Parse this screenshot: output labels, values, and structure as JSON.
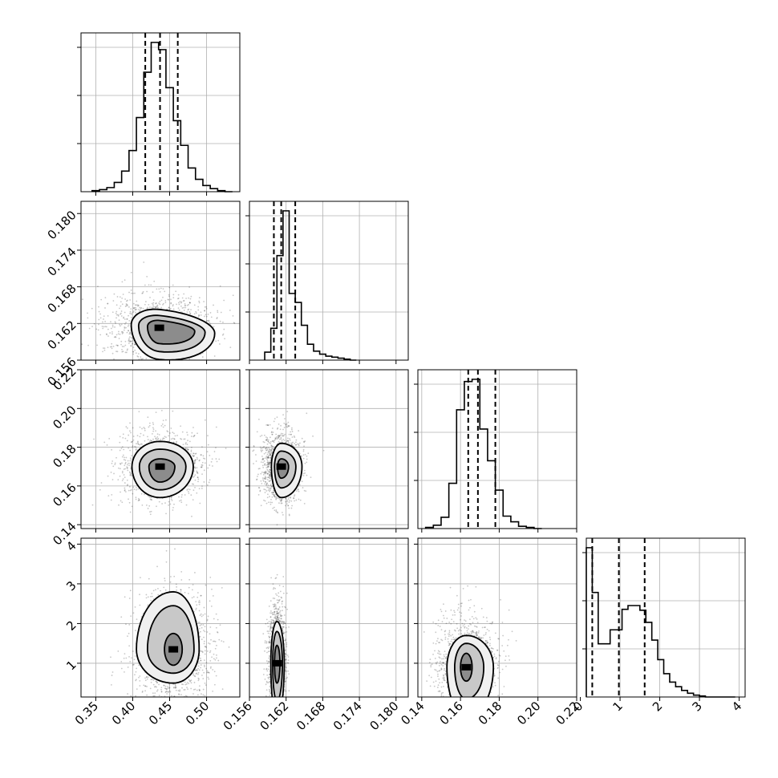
{
  "chart_data": {
    "type": "corner",
    "grid": true,
    "colors": {
      "line": "#000000",
      "grid": "#b0b0b0",
      "fill_dark": "#000000",
      "scatter": "#000000"
    },
    "parameters": [
      {
        "index": 0,
        "range": [
          0.33,
          0.545
        ],
        "median": 0.437,
        "q16": 0.417,
        "q84": 0.461,
        "ticks": [
          0.35,
          0.4,
          0.45,
          0.5
        ],
        "tick_labels": [
          "0.35",
          "0.40",
          "0.45",
          "0.50"
        ]
      },
      {
        "index": 1,
        "range": [
          0.156,
          0.182
        ],
        "median": 0.1612,
        "q16": 0.16,
        "q84": 0.1635,
        "ticks": [
          0.156,
          0.162,
          0.168,
          0.174,
          0.18
        ],
        "tick_labels": [
          "0.156",
          "0.162",
          "0.168",
          "0.174",
          "0.180"
        ]
      },
      {
        "index": 2,
        "range": [
          0.138,
          0.22
        ],
        "median": 0.169,
        "q16": 0.164,
        "q84": 0.178,
        "ticks": [
          0.14,
          0.16,
          0.18,
          0.2,
          0.22
        ],
        "tick_labels": [
          "0.14",
          "0.16",
          "0.18",
          "0.20",
          "0.22"
        ]
      },
      {
        "index": 3,
        "range": [
          0.15,
          4.15
        ],
        "median": 0.97,
        "q16": 0.3,
        "q84": 1.62,
        "ticks": [
          1,
          2,
          3,
          4
        ],
        "tick_labels": [
          "1",
          "2",
          "3",
          "4"
        ],
        "y_ticks": [
          1,
          2,
          3,
          4
        ],
        "y_tick_labels": [
          "1",
          "2",
          "3",
          "4"
        ],
        "x_ticks": [
          0,
          1,
          2,
          3,
          4
        ],
        "x_tick_labels": [
          "0",
          "1",
          "2",
          "3",
          "4"
        ]
      }
    ],
    "histograms": [
      {
        "param": 0,
        "bin_edges": [
          0.345,
          0.355,
          0.365,
          0.375,
          0.385,
          0.395,
          0.405,
          0.415,
          0.425,
          0.435,
          0.445,
          0.455,
          0.465,
          0.475,
          0.485,
          0.495,
          0.505,
          0.515,
          0.525,
          0.535
        ],
        "counts": [
          1,
          2,
          4,
          9,
          20,
          40,
          72,
          116,
          145,
          138,
          101,
          69,
          45,
          23,
          12,
          6,
          3,
          1,
          0
        ]
      },
      {
        "param": 1,
        "bin_edges": [
          0.1585,
          0.1595,
          0.1605,
          0.1615,
          0.1625,
          0.1635,
          0.1645,
          0.1655,
          0.1665,
          0.1675,
          0.1685,
          0.1695,
          0.1705,
          0.1715,
          0.1725,
          0.1735
        ],
        "counts": [
          8,
          32,
          105,
          150,
          67,
          58,
          35,
          16,
          9,
          6,
          4,
          3,
          2,
          1,
          0
        ]
      },
      {
        "param": 2,
        "bin_edges": [
          0.142,
          0.146,
          0.15,
          0.154,
          0.158,
          0.162,
          0.166,
          0.17,
          0.174,
          0.178,
          0.182,
          0.186,
          0.19,
          0.194,
          0.198,
          0.202
        ],
        "counts": [
          1,
          3,
          10,
          40,
          105,
          130,
          132,
          88,
          60,
          34,
          11,
          6,
          2,
          1,
          0
        ]
      },
      {
        "param": 3,
        "bin_edges": [
          0.15,
          0.3,
          0.45,
          0.6,
          0.75,
          0.9,
          1.05,
          1.2,
          1.35,
          1.5,
          1.65,
          1.8,
          1.95,
          2.1,
          2.25,
          2.4,
          2.55,
          2.7,
          2.85,
          3.0,
          3.15,
          3.5,
          3.9
        ],
        "counts": [
          160,
          112,
          57,
          57,
          72,
          72,
          94,
          98,
          98,
          93,
          80,
          61,
          40,
          25,
          16,
          11,
          7,
          4,
          2,
          1,
          0,
          0
        ]
      }
    ],
    "contours_2d": [
      {
        "x_param": 0,
        "y_param": 1,
        "center": [
          0.436,
          0.1613
        ],
        "levels": [
          {
            "rx": [
              0.016,
              0.048
            ],
            "ry": [
              0.0012,
              0.0026
            ],
            "lean": 0.4
          },
          {
            "rx": [
              0.028,
              0.062
            ],
            "ry": [
              0.002,
              0.0039
            ],
            "lean": 0.4
          },
          {
            "rx": [
              0.038,
              0.075
            ],
            "ry": [
              0.003,
              0.0052
            ],
            "lean": 0.4
          }
        ]
      },
      {
        "x_param": 0,
        "y_param": 2,
        "center": [
          0.437,
          0.17
        ],
        "levels": [
          {
            "rx": [
              0.015,
              0.02
            ],
            "ry": [
              0.004,
              0.008
            ]
          },
          {
            "rx": [
              0.028,
              0.035
            ],
            "ry": [
              0.009,
              0.012
            ]
          },
          {
            "rx": [
              0.038,
              0.045
            ],
            "ry": [
              0.013,
              0.016
            ]
          }
        ]
      },
      {
        "x_param": 1,
        "y_param": 2,
        "center": [
          0.1612,
          0.17
        ],
        "levels": [
          {
            "rx": [
              0.0006,
              0.0012
            ],
            "ry": [
              0.004,
              0.006
            ]
          },
          {
            "rx": [
              0.0011,
              0.0024
            ],
            "ry": [
              0.008,
              0.011
            ]
          },
          {
            "rx": [
              0.0016,
              0.0034
            ],
            "ry": [
              0.012,
              0.016
            ]
          }
        ]
      },
      {
        "x_param": 0,
        "y_param": 3,
        "center": [
          0.455,
          1.35
        ],
        "levels": [
          {
            "rx": [
              0.012,
              0.012
            ],
            "ry": [
              0.4,
              0.4
            ]
          },
          {
            "rx": [
              0.035,
              0.028
            ],
            "ry": [
              1.1,
              0.6
            ]
          },
          {
            "rx": [
              0.05,
              0.035
            ],
            "ry": [
              1.45,
              0.85
            ]
          }
        ]
      },
      {
        "x_param": 1,
        "y_param": 3,
        "center": [
          0.1605,
          1.0
        ],
        "levels": [
          {
            "rx": [
              0.0004,
              0.0005
            ],
            "ry": [
              0.45,
              0.5
            ]
          },
          {
            "rx": [
              0.0007,
              0.0009
            ],
            "ry": [
              0.8,
              0.95
            ]
          },
          {
            "rx": [
              0.001,
              0.0012
            ],
            "ry": [
              1.05,
              1.35
            ]
          }
        ]
      },
      {
        "x_param": 2,
        "y_param": 3,
        "center": [
          0.163,
          0.9
        ],
        "levels": [
          {
            "rx": [
              0.003,
              0.003
            ],
            "ry": [
              0.35,
              0.35
            ]
          },
          {
            "rx": [
              0.006,
              0.009
            ],
            "ry": [
              0.6,
              0.8
            ]
          },
          {
            "rx": [
              0.01,
              0.014
            ],
            "ry": [
              0.8,
              1.25
            ]
          }
        ]
      }
    ]
  }
}
